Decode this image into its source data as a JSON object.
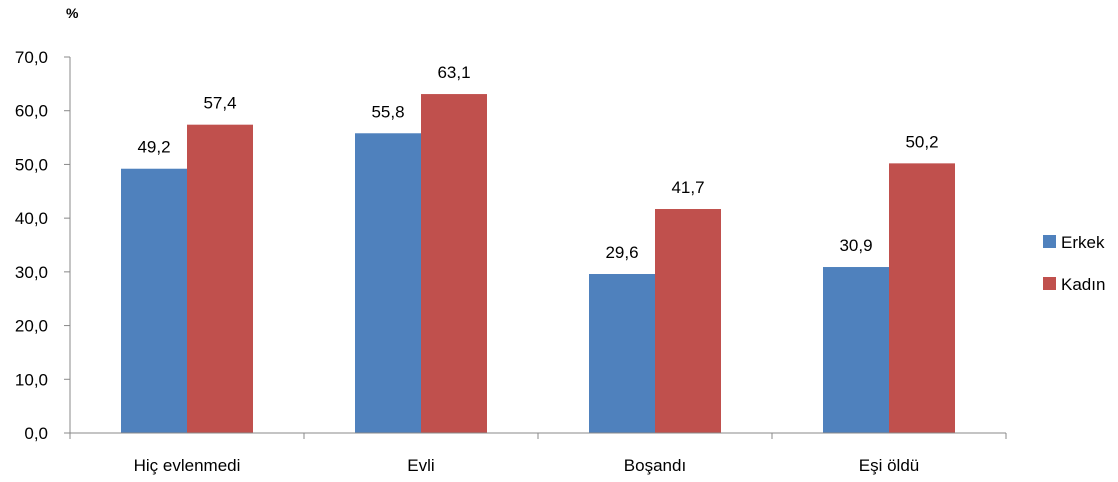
{
  "chart_data": {
    "type": "bar",
    "title": "",
    "unit_label": "%",
    "xlabel": "",
    "ylabel": "",
    "ylim": [
      0,
      70
    ],
    "yticks": [
      "0,0",
      "10,0",
      "20,0",
      "30,0",
      "40,0",
      "50,0",
      "60,0",
      "70,0"
    ],
    "categories": [
      "Hiç evlenmedi",
      "Evli",
      "Boşandı",
      "Eşi öldü"
    ],
    "series": [
      {
        "name": "Erkek",
        "color": "#4F81BD",
        "values": [
          49.2,
          55.8,
          29.6,
          30.9
        ],
        "labels": [
          "49,2",
          "55,8",
          "29,6",
          "30,9"
        ]
      },
      {
        "name": "Kadın",
        "color": "#C0504D",
        "values": [
          57.4,
          63.1,
          41.7,
          50.2
        ],
        "labels": [
          "57,4",
          "63,1",
          "41,7",
          "50,2"
        ]
      }
    ],
    "grid": false,
    "legend_position": "right"
  }
}
